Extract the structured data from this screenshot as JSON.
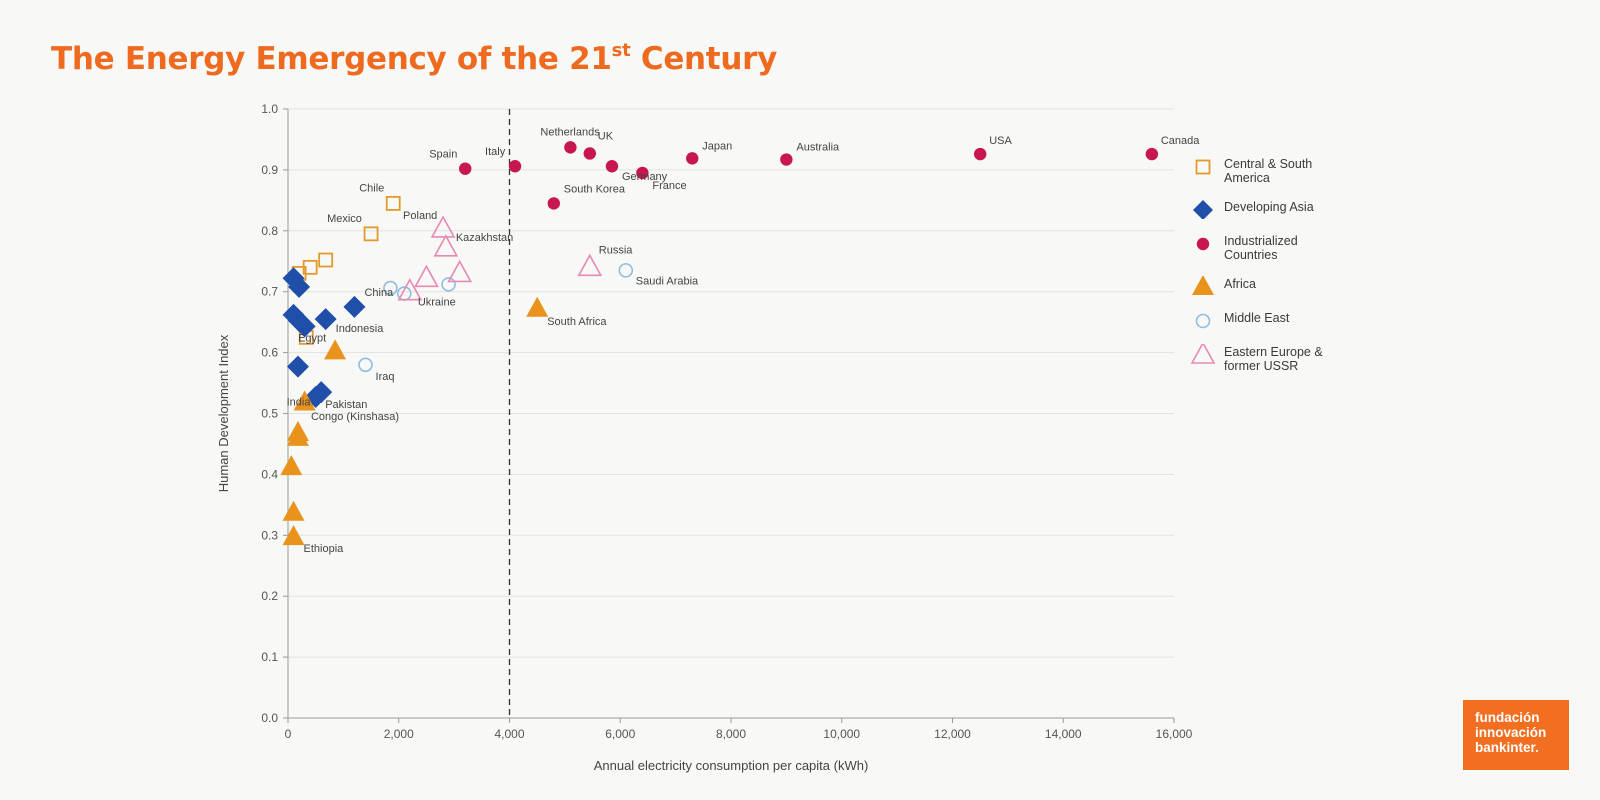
{
  "title": {
    "main": "The Energy Emergency of the 21",
    "sup": "st",
    "tail": " Century"
  },
  "logo": {
    "line1": "fundación",
    "line2": "innovación",
    "line3": "bankinter."
  },
  "colors": {
    "title": "#ee6a1f",
    "central_south_america": "#e39a2c",
    "developing_asia": "#1f4fa8",
    "industrialized": "#c8174f",
    "africa": "#e9931c",
    "middle_east": "#8fbde0",
    "eastern_europe": "#e68ab3",
    "logo_bg": "#f26f21"
  },
  "chart_data": {
    "type": "scatter",
    "title": "The Energy Emergency of the 21st Century",
    "xlabel": "Annual electricity consumption per capita (kWh)",
    "ylabel": "Human Development Index",
    "xlim": [
      0,
      16000
    ],
    "ylim": [
      0.0,
      1.0
    ],
    "xticks": [
      0,
      2000,
      4000,
      6000,
      8000,
      10000,
      12000,
      14000,
      16000
    ],
    "xtick_labels": [
      "0",
      "2,000",
      "4,000",
      "6,000",
      "8,000",
      "10,000",
      "12,000",
      "14,000",
      "16,000"
    ],
    "yticks": [
      0.0,
      0.1,
      0.2,
      0.3,
      0.4,
      0.5,
      0.6,
      0.7,
      0.8,
      0.9,
      1.0
    ],
    "ytick_labels": [
      "0.0",
      "0.1",
      "0.2",
      "0.3",
      "0.4",
      "0.5",
      "0.6",
      "0.7",
      "0.8",
      "0.9",
      "1.0"
    ],
    "grid": true,
    "reference_line": {
      "x": 4000,
      "style": "dashed"
    },
    "legend_position": "right",
    "series": [
      {
        "name": "Central & South America",
        "marker": "square-open",
        "color_key": "central_south_america",
        "points": [
          {
            "x": 1900,
            "y": 0.845,
            "label": "Chile"
          },
          {
            "x": 1500,
            "y": 0.795,
            "label": "Mexico"
          },
          {
            "x": 680,
            "y": 0.752,
            "label": ""
          },
          {
            "x": 400,
            "y": 0.74,
            "label": ""
          },
          {
            "x": 200,
            "y": 0.73,
            "label": ""
          },
          {
            "x": 330,
            "y": 0.625,
            "label": ""
          }
        ]
      },
      {
        "name": "Developing Asia",
        "marker": "diamond",
        "color_key": "developing_asia",
        "points": [
          {
            "x": 1200,
            "y": 0.675,
            "label": "China"
          },
          {
            "x": 680,
            "y": 0.655,
            "label": "Indonesia"
          },
          {
            "x": 100,
            "y": 0.722,
            "label": ""
          },
          {
            "x": 200,
            "y": 0.708,
            "label": ""
          },
          {
            "x": 100,
            "y": 0.662,
            "label": ""
          },
          {
            "x": 200,
            "y": 0.652,
            "label": ""
          },
          {
            "x": 300,
            "y": 0.643,
            "label": ""
          },
          {
            "x": 180,
            "y": 0.577,
            "label": ""
          },
          {
            "x": 500,
            "y": 0.527,
            "label": ""
          },
          {
            "x": 600,
            "y": 0.535,
            "label": "Pakistan"
          }
        ]
      },
      {
        "name": "Industrialized Countries",
        "marker": "circle",
        "color_key": "industrialized",
        "points": [
          {
            "x": 3200,
            "y": 0.902,
            "label": "Spain"
          },
          {
            "x": 4100,
            "y": 0.906,
            "label": "Italy"
          },
          {
            "x": 5100,
            "y": 0.937,
            "label": "Netherlands"
          },
          {
            "x": 5450,
            "y": 0.927,
            "label": "UK"
          },
          {
            "x": 5850,
            "y": 0.906,
            "label": "Germany"
          },
          {
            "x": 6400,
            "y": 0.895,
            "label": "France"
          },
          {
            "x": 4800,
            "y": 0.845,
            "label": "South Korea"
          },
          {
            "x": 7300,
            "y": 0.919,
            "label": "Japan"
          },
          {
            "x": 9000,
            "y": 0.917,
            "label": "Australia"
          },
          {
            "x": 12500,
            "y": 0.926,
            "label": "USA"
          },
          {
            "x": 15600,
            "y": 0.926,
            "label": "Canada"
          }
        ]
      },
      {
        "name": "Africa",
        "marker": "triangle",
        "color_key": "africa",
        "points": [
          {
            "x": 4500,
            "y": 0.672,
            "label": "South Africa"
          },
          {
            "x": 850,
            "y": 0.602,
            "label": "Egypt"
          },
          {
            "x": 300,
            "y": 0.518,
            "label": "India"
          },
          {
            "x": 180,
            "y": 0.468,
            "label": ""
          },
          {
            "x": 180,
            "y": 0.46,
            "label": "Congo (Kinshasa)"
          },
          {
            "x": 60,
            "y": 0.412,
            "label": ""
          },
          {
            "x": 100,
            "y": 0.337,
            "label": ""
          },
          {
            "x": 100,
            "y": 0.297,
            "label": "Ethiopia"
          }
        ]
      },
      {
        "name": "Middle East",
        "marker": "circle-open",
        "color_key": "middle_east",
        "points": [
          {
            "x": 6100,
            "y": 0.735,
            "label": "Saudi Arabia"
          },
          {
            "x": 1850,
            "y": 0.706,
            "label": ""
          },
          {
            "x": 2100,
            "y": 0.697,
            "label": ""
          },
          {
            "x": 2900,
            "y": 0.712,
            "label": ""
          },
          {
            "x": 1400,
            "y": 0.58,
            "label": "Iraq"
          }
        ]
      },
      {
        "name": "Eastern Europe & former USSR",
        "marker": "triangle-open",
        "color_key": "eastern_europe",
        "points": [
          {
            "x": 2800,
            "y": 0.803,
            "label": "Poland"
          },
          {
            "x": 2850,
            "y": 0.772,
            "label": "Kazakhstan"
          },
          {
            "x": 3100,
            "y": 0.73,
            "label": ""
          },
          {
            "x": 2500,
            "y": 0.722,
            "label": ""
          },
          {
            "x": 2200,
            "y": 0.7,
            "label": "Ukraine"
          },
          {
            "x": 5450,
            "y": 0.74,
            "label": "Russia"
          }
        ]
      }
    ]
  },
  "legend": [
    {
      "line1": "Central & South",
      "line2": "America",
      "marker": "square-open",
      "color_key": "central_south_america"
    },
    {
      "line1": "Developing Asia",
      "line2": "",
      "marker": "diamond",
      "color_key": "developing_asia"
    },
    {
      "line1": "Industrialized",
      "line2": "Countries",
      "marker": "circle",
      "color_key": "industrialized"
    },
    {
      "line1": "Africa",
      "line2": "",
      "marker": "triangle",
      "color_key": "africa"
    },
    {
      "line1": "Middle East",
      "line2": "",
      "marker": "circle-open",
      "color_key": "middle_east"
    },
    {
      "line1": "Eastern Europe &",
      "line2": "former USSR",
      "marker": "triangle-open",
      "color_key": "eastern_europe"
    }
  ]
}
